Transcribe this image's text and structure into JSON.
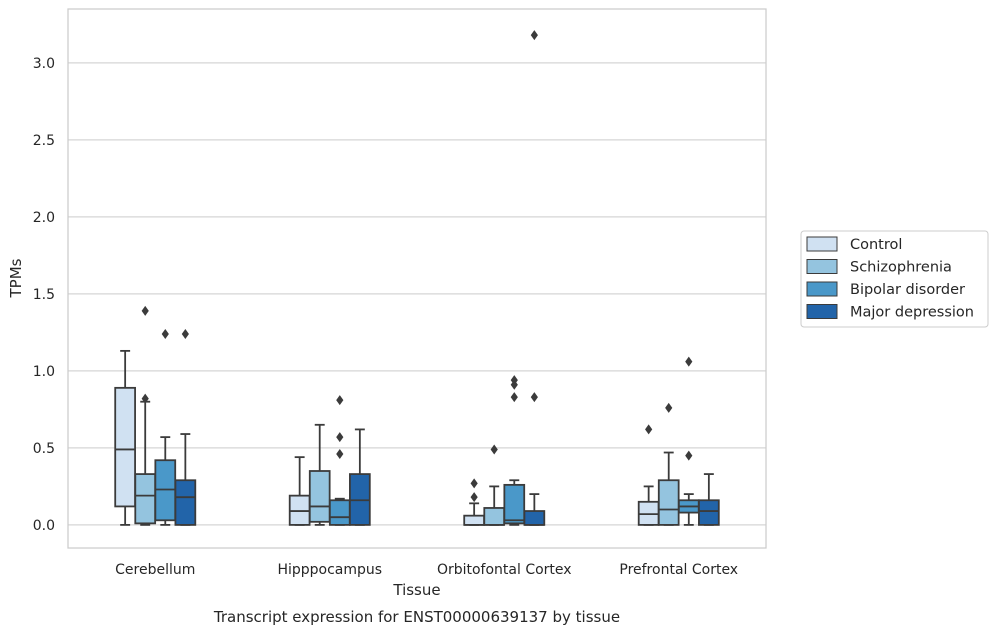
{
  "chart_data": {
    "type": "box",
    "title": "",
    "caption": "Transcript expression for ENST00000639137 by tissue",
    "xlabel": "Tissue",
    "ylabel": "TPMs",
    "ylim": [
      -0.15,
      3.35
    ],
    "yticks": [
      0.0,
      0.5,
      1.0,
      1.5,
      2.0,
      2.5,
      3.0
    ],
    "ytick_labels": [
      "0.0",
      "0.5",
      "1.0",
      "1.5",
      "2.0",
      "2.5",
      "3.0"
    ],
    "grid": "horizontal",
    "legend_position": "right",
    "categories": [
      "Cerebellum",
      "Hipppocampus",
      "Orbitofontal Cortex",
      "Prefrontal Cortex"
    ],
    "series": [
      {
        "name": "Control",
        "color": "#d0e1f2",
        "boxes": [
          {
            "q1": 0.12,
            "median": 0.49,
            "q3": 0.89,
            "whislo": 0.0,
            "whishi": 1.13,
            "fliers": []
          },
          {
            "q1": 0.0,
            "median": 0.09,
            "q3": 0.19,
            "whislo": 0.0,
            "whishi": 0.44,
            "fliers": []
          },
          {
            "q1": 0.0,
            "median": 0.0,
            "q3": 0.06,
            "whislo": 0.0,
            "whishi": 0.14,
            "fliers": [
              0.18,
              0.27
            ]
          },
          {
            "q1": 0.0,
            "median": 0.07,
            "q3": 0.15,
            "whislo": 0.0,
            "whishi": 0.25,
            "fliers": [
              0.62
            ]
          }
        ]
      },
      {
        "name": "Schizophrenia",
        "color": "#94c4df",
        "boxes": [
          {
            "q1": 0.01,
            "median": 0.19,
            "q3": 0.33,
            "whislo": 0.0,
            "whishi": 0.8,
            "fliers": [
              0.82,
              1.39
            ]
          },
          {
            "q1": 0.02,
            "median": 0.12,
            "q3": 0.35,
            "whislo": 0.0,
            "whishi": 0.65,
            "fliers": []
          },
          {
            "q1": 0.0,
            "median": 0.0,
            "q3": 0.11,
            "whislo": 0.0,
            "whishi": 0.25,
            "fliers": [
              0.49
            ]
          },
          {
            "q1": 0.0,
            "median": 0.1,
            "q3": 0.29,
            "whislo": 0.0,
            "whishi": 0.47,
            "fliers": [
              0.76
            ]
          }
        ]
      },
      {
        "name": "Bipolar disorder",
        "color": "#4a98c9",
        "boxes": [
          {
            "q1": 0.03,
            "median": 0.23,
            "q3": 0.42,
            "whislo": 0.0,
            "whishi": 0.57,
            "fliers": [
              1.24
            ]
          },
          {
            "q1": 0.0,
            "median": 0.05,
            "q3": 0.16,
            "whislo": 0.0,
            "whishi": 0.17,
            "fliers": [
              0.46,
              0.57,
              0.81
            ]
          },
          {
            "q1": 0.01,
            "median": 0.03,
            "q3": 0.26,
            "whislo": 0.0,
            "whishi": 0.29,
            "fliers": [
              0.83,
              0.91,
              0.94
            ]
          },
          {
            "q1": 0.08,
            "median": 0.12,
            "q3": 0.16,
            "whislo": 0.0,
            "whishi": 0.2,
            "fliers": [
              0.45,
              1.06
            ]
          }
        ]
      },
      {
        "name": "Major depression",
        "color": "#2264a9",
        "boxes": [
          {
            "q1": 0.0,
            "median": 0.18,
            "q3": 0.29,
            "whislo": 0.0,
            "whishi": 0.59,
            "fliers": [
              1.24
            ]
          },
          {
            "q1": 0.0,
            "median": 0.16,
            "q3": 0.33,
            "whislo": 0.0,
            "whishi": 0.62,
            "fliers": []
          },
          {
            "q1": 0.0,
            "median": 0.0,
            "q3": 0.09,
            "whislo": 0.0,
            "whishi": 0.2,
            "fliers": [
              0.83,
              3.18
            ]
          },
          {
            "q1": 0.0,
            "median": 0.09,
            "q3": 0.16,
            "whislo": 0.0,
            "whishi": 0.33,
            "fliers": []
          }
        ]
      }
    ]
  }
}
